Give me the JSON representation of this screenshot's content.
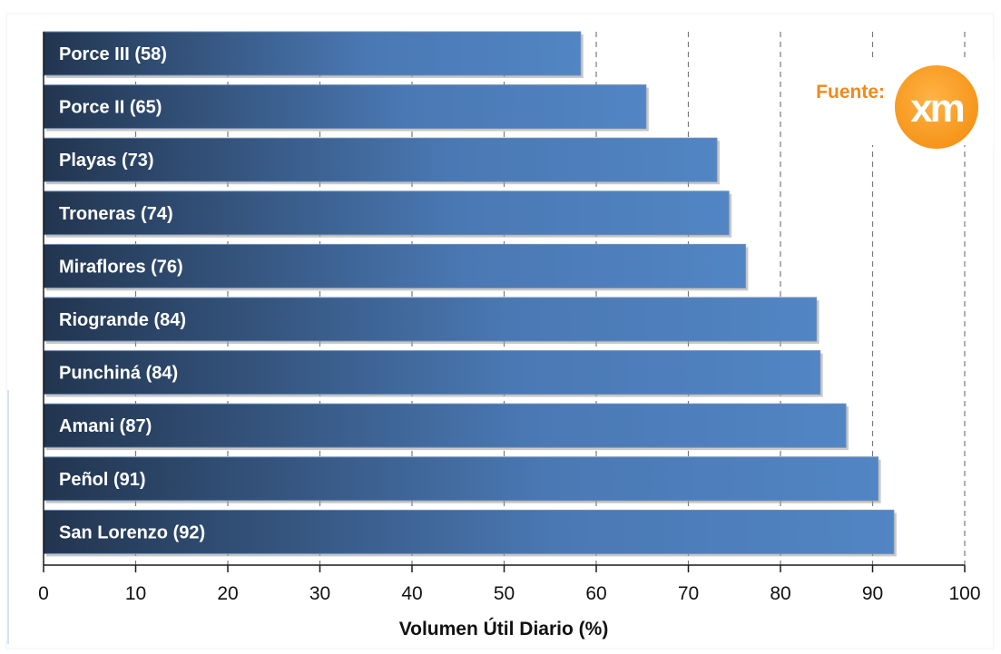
{
  "chart_data": {
    "type": "bar",
    "orientation": "horizontal",
    "categories": [
      "Porce III (58)",
      "Porce II (65)",
      "Playas (73)",
      "Troneras (74)",
      "Miraflores (76)",
      "Riogrande (84)",
      "Punchiná (84)",
      "Amani (87)",
      "Peñol (91)",
      "San Lorenzo (92)"
    ],
    "values": [
      58.3,
      65.4,
      73.1,
      74.4,
      76.2,
      83.9,
      84.3,
      87.1,
      90.6,
      92.3
    ],
    "xlabel": "Volumen Útil Diario (%)",
    "ylabel": "",
    "xlim": [
      0,
      100
    ],
    "xticks": [
      "0",
      "10",
      "20",
      "30",
      "40",
      "50",
      "60",
      "70",
      "80",
      "90",
      "100"
    ],
    "grid": "vertical dashed",
    "bar_color_start": "#22354f",
    "bar_color_end": "#5285c4"
  },
  "source": {
    "label": "Fuente:",
    "logo_text": "xm",
    "logo_color": "#f59418"
  }
}
